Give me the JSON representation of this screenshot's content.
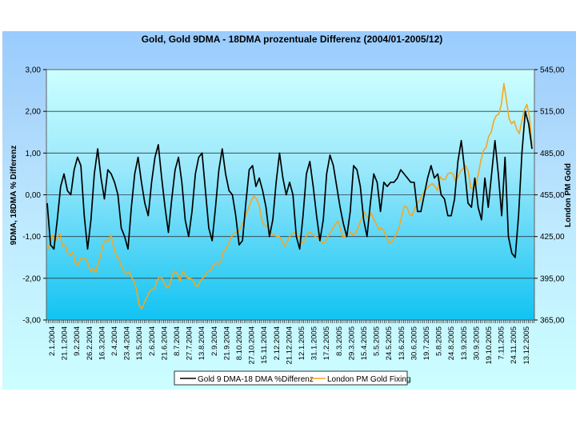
{
  "chart_data": {
    "type": "line",
    "title": "Gold,  Gold 9DMA - 18DMA prozentuale Differenz (2004/01-2005/12)",
    "ylabel": "9DMA, 18DMA % Differenz",
    "y2label": "London PM Gold",
    "ylim": [
      -3,
      3
    ],
    "y2lim": [
      365,
      545
    ],
    "yticks": [
      "3,00",
      "2,00",
      "1,00",
      "0,00",
      "-1,00",
      "-2,00",
      "-3,00"
    ],
    "yticks_values": [
      3,
      2,
      1,
      0,
      -1,
      -2,
      -3
    ],
    "y2ticks": [
      "545,00",
      "515,00",
      "485,00",
      "455,00",
      "425,00",
      "395,00",
      "365,00"
    ],
    "y2ticks_values": [
      545,
      515,
      485,
      455,
      425,
      395,
      365
    ],
    "grid": true,
    "legend_position": "bottom",
    "xtick_labels": [
      "2.1.2004",
      "21.1.2004",
      "9.2.2004",
      "26.2.2004",
      "16.3.2004",
      "2.4.2004",
      "23.4.2004",
      "13.5.2004",
      "2.6.2004",
      "21.6.2004",
      "8.7.2004",
      "27.7.2004",
      "13.8.2004",
      "2.9.2004",
      "21.9.2004",
      "8.10.2004",
      "27.10.2004",
      "15.11.2004",
      "2.12.2004",
      "21.12.2004",
      "12.1.2005",
      "31.1.2005",
      "17.2.2005",
      "8.3.2005",
      "29.3.2005",
      "15.4.2005",
      "5.5.2005",
      "24.5.2005",
      "13.6.2005",
      "30.6.2005",
      "19.7.2005",
      "5.8.2005",
      "24.8.2005",
      "13.9.2005",
      "30.9.2005",
      "19.10.2005",
      "7.11.2005",
      "24.11.2005",
      "13.12.2005"
    ],
    "series": [
      {
        "name": "Gold 9 DMA-18 DMA %Differenz",
        "axis": "left",
        "color": "#000000",
        "values": [
          -0.2,
          -1.2,
          -1.3,
          -0.6,
          0.2,
          0.5,
          0.1,
          0.0,
          0.6,
          0.9,
          0.7,
          -0.5,
          -1.3,
          -0.6,
          0.5,
          1.1,
          0.4,
          -0.1,
          0.6,
          0.5,
          0.3,
          0.0,
          -0.8,
          -1.0,
          -1.3,
          -0.3,
          0.5,
          0.9,
          0.3,
          -0.2,
          -0.5,
          0.3,
          0.9,
          1.2,
          0.4,
          -0.3,
          -0.9,
          -0.1,
          0.6,
          0.9,
          0.3,
          -0.6,
          -1.0,
          -0.4,
          0.5,
          0.9,
          1.0,
          0.1,
          -0.8,
          -1.1,
          -0.3,
          0.6,
          1.1,
          0.5,
          0.1,
          0.0,
          -0.5,
          -1.2,
          -1.1,
          -0.2,
          0.6,
          0.7,
          0.2,
          0.4,
          0.1,
          -0.3,
          -1.0,
          -0.6,
          0.3,
          1.0,
          0.4,
          0.0,
          0.3,
          0.0,
          -1.0,
          -1.3,
          -0.5,
          0.5,
          0.8,
          0.2,
          -0.5,
          -1.1,
          -0.6,
          0.5,
          0.95,
          0.7,
          0.2,
          -0.3,
          -0.7,
          -1.0,
          -0.4,
          0.7,
          0.6,
          0.2,
          -0.6,
          -1.0,
          -0.2,
          0.5,
          0.3,
          -0.4,
          0.3,
          0.2,
          0.3,
          0.3,
          0.4,
          0.6,
          0.5,
          0.4,
          0.3,
          0.3,
          -0.4,
          -0.4,
          0.0,
          0.4,
          0.7,
          0.4,
          0.5,
          0.0,
          -0.1,
          -0.5,
          -0.5,
          -0.1,
          0.8,
          1.3,
          0.6,
          -0.2,
          -0.3,
          0.4,
          -0.3,
          -0.6,
          0.4,
          -0.3,
          0.5,
          1.3,
          0.5,
          -0.5,
          0.9,
          -1.0,
          -1.4,
          -1.5,
          -0.5,
          1.0,
          2.0,
          1.7,
          1.1
        ]
      },
      {
        "name": "London PM Gold Fixing",
        "axis": "right",
        "color": "#f5a623",
        "values": [
          415,
          420,
          426,
          421,
          425,
          427,
          418,
          419,
          413,
          412,
          414,
          406,
          404,
          409,
          410,
          409,
          406,
          400,
          402,
          399,
          406,
          412,
          420,
          423,
          422,
          426,
          418,
          411,
          410,
          404,
          400,
          398,
          400,
          396,
          393,
          387,
          376,
          373,
          377,
          381,
          385,
          387,
          387,
          393,
          396,
          395,
          391,
          388,
          390,
          397,
          400,
          398,
          393,
          400,
          398,
          395,
          395,
          394,
          390,
          389,
          393,
          395,
          397,
          400,
          400,
          404,
          406,
          405,
          407,
          414,
          416,
          420,
          424,
          427,
          428,
          429,
          432,
          436,
          441,
          446,
          451,
          454,
          452,
          448,
          438,
          433,
          433,
          428,
          427,
          426,
          425,
          425,
          422,
          418,
          421,
          425,
          427,
          428,
          426,
          424,
          420,
          423,
          427,
          428,
          427,
          425,
          424,
          422,
          420,
          421,
          425,
          428,
          431,
          434,
          436,
          430,
          424,
          426,
          427,
          428,
          426,
          428,
          432,
          437,
          443,
          440,
          438,
          442,
          437,
          434,
          430,
          431,
          429,
          425,
          420,
          421,
          424,
          428,
          432,
          440,
          447,
          446,
          441,
          440,
          445,
          449,
          451,
          455,
          458,
          460,
          462,
          463,
          461,
          458,
          468,
          466,
          466,
          470,
          471,
          470,
          465,
          468,
          472,
          474,
          476,
          472,
          460,
          459,
          462,
          470,
          480,
          487,
          489,
          497,
          500,
          508,
          512,
          513,
          520,
          535,
          523,
          510,
          506,
          508,
          502,
          499,
          508,
          516,
          520,
          511,
          490
        ]
      }
    ]
  },
  "legend": {
    "items": [
      "Gold 9 DMA-18 DMA %Differenz",
      "London PM Gold Fixing"
    ]
  }
}
